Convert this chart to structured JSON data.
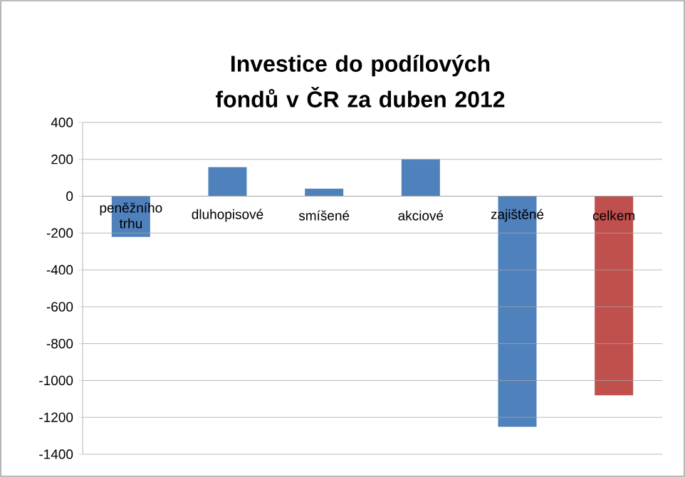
{
  "chart_data": {
    "type": "bar",
    "title": "Investice do podílových fondů v ČR za duben 2012",
    "categories": [
      "peněžního trhu",
      "dluhopisové",
      "smíšené",
      "akciové",
      "zajištěné",
      "celkem"
    ],
    "values": [
      -221,
      158,
      41,
      200,
      -1251,
      -1080
    ],
    "colors": [
      "#4f81bd",
      "#4f81bd",
      "#4f81bd",
      "#4f81bd",
      "#4f81bd",
      "#c0504d"
    ],
    "ylim": [
      -1400,
      400
    ],
    "yticks": [
      -1400,
      -1200,
      -1000,
      -800,
      -600,
      -400,
      -200,
      0,
      200,
      400
    ],
    "grid": "y"
  }
}
